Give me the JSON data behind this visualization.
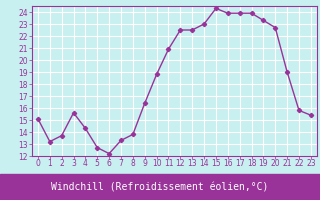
{
  "x": [
    0,
    1,
    2,
    3,
    4,
    5,
    6,
    7,
    8,
    9,
    10,
    11,
    12,
    13,
    14,
    15,
    16,
    17,
    18,
    19,
    20,
    21,
    22,
    23
  ],
  "y": [
    15.1,
    13.2,
    13.7,
    15.6,
    14.3,
    12.7,
    12.2,
    13.3,
    13.8,
    16.4,
    18.8,
    20.9,
    22.5,
    22.5,
    23.0,
    24.3,
    23.9,
    23.9,
    23.9,
    23.3,
    22.7,
    19.0,
    15.8,
    15.4
  ],
  "line_color": "#993399",
  "marker": "D",
  "markersize": 2.2,
  "linewidth": 1.0,
  "bg_color": "#c8f0f0",
  "grid_color": "#ffffff",
  "xlabel": "Windchill (Refroidissement éolien,°C)",
  "xlabel_color": "#ffffff",
  "xlabel_bg": "#993399",
  "ylim": [
    12,
    24.5
  ],
  "yticks": [
    12,
    13,
    14,
    15,
    16,
    17,
    18,
    19,
    20,
    21,
    22,
    23,
    24
  ],
  "xtick_labels": [
    "0",
    "1",
    "2",
    "3",
    "4",
    "5",
    "6",
    "7",
    "8",
    "9",
    "10",
    "11",
    "12",
    "13",
    "14",
    "15",
    "16",
    "17",
    "18",
    "19",
    "20",
    "21",
    "22",
    "23"
  ],
  "tick_color": "#993399",
  "tick_fontsize": 5.5,
  "xlabel_fontsize": 7.0
}
